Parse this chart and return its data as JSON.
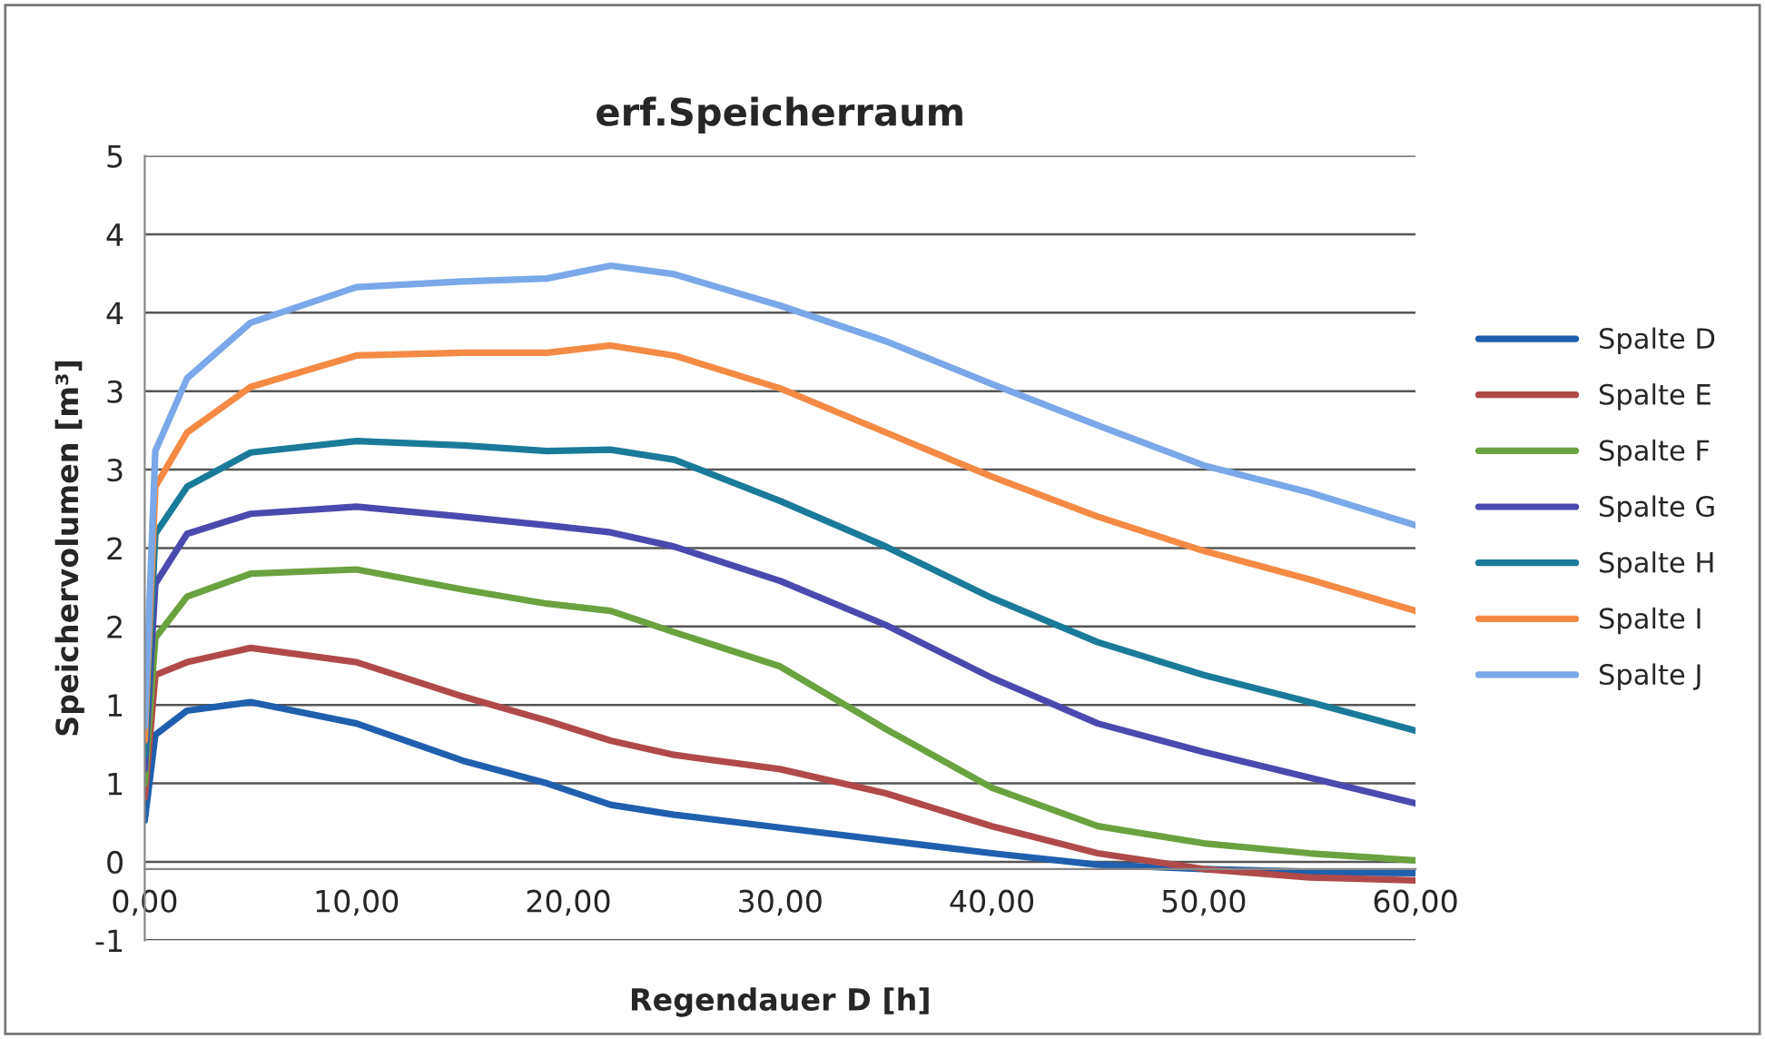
{
  "chart_data": {
    "type": "line",
    "title": "erf.Speicherraum",
    "xlabel": "Regendauer D [h]",
    "ylabel": "Speichervolumen [m³]",
    "xlim": [
      0,
      60
    ],
    "xticks": [
      {
        "value": 0,
        "label": "0,00"
      },
      {
        "value": 10,
        "label": "10,00"
      },
      {
        "value": 20,
        "label": "20,00"
      },
      {
        "value": 30,
        "label": "30,00"
      },
      {
        "value": 40,
        "label": "40,00"
      },
      {
        "value": 50,
        "label": "50,00"
      },
      {
        "value": 60,
        "label": "60,00"
      }
    ],
    "ylim": [
      -0.5,
      5
    ],
    "yticks": [
      {
        "value": -0.5,
        "label": "-1"
      },
      {
        "value": 0.05,
        "label": "0"
      },
      {
        "value": 0.6,
        "label": "1"
      },
      {
        "value": 1.15,
        "label": "1"
      },
      {
        "value": 1.7,
        "label": "2"
      },
      {
        "value": 2.25,
        "label": "2"
      },
      {
        "value": 2.8,
        "label": "3"
      },
      {
        "value": 3.35,
        "label": "3"
      },
      {
        "value": 3.9,
        "label": "4"
      },
      {
        "value": 4.45,
        "label": "4"
      },
      {
        "value": 5,
        "label": "5"
      }
    ],
    "grid": "y",
    "legend": "right",
    "marker": "none",
    "line_style": "solid",
    "x": [
      0,
      0.5,
      2,
      5,
      10,
      15,
      19,
      22,
      25,
      30,
      35,
      40,
      45,
      50,
      55,
      60
    ],
    "series": [
      {
        "name": "Spalte D",
        "color": "#1f5fae",
        "values": [
          0.34,
          0.94,
          1.11,
          1.17,
          1.02,
          0.76,
          0.6,
          0.45,
          0.38,
          0.29,
          0.2,
          0.11,
          0.03,
          0.0,
          -0.02,
          -0.03
        ]
      },
      {
        "name": "Spalte E",
        "color": "#b04a4a",
        "values": [
          0.5,
          1.36,
          1.45,
          1.55,
          1.45,
          1.21,
          1.04,
          0.9,
          0.8,
          0.7,
          0.53,
          0.3,
          0.11,
          0.0,
          -0.06,
          -0.08
        ]
      },
      {
        "name": "Spalte F",
        "color": "#6aa23f",
        "values": [
          0.6,
          1.62,
          1.91,
          2.07,
          2.1,
          1.96,
          1.86,
          1.81,
          1.66,
          1.42,
          0.98,
          0.57,
          0.3,
          0.18,
          0.11,
          0.06
        ]
      },
      {
        "name": "Spalte G",
        "color": "#4a4aae",
        "values": [
          0.7,
          2.0,
          2.35,
          2.49,
          2.54,
          2.47,
          2.41,
          2.36,
          2.26,
          2.02,
          1.71,
          1.34,
          1.02,
          0.82,
          0.64,
          0.46
        ]
      },
      {
        "name": "Spalte H",
        "color": "#1a7a9a",
        "values": [
          0.8,
          2.35,
          2.68,
          2.92,
          3.0,
          2.97,
          2.93,
          2.94,
          2.87,
          2.58,
          2.26,
          1.9,
          1.59,
          1.36,
          1.17,
          0.97
        ]
      },
      {
        "name": "Spalte I",
        "color": "#f58a45",
        "values": [
          0.9,
          2.68,
          3.06,
          3.38,
          3.6,
          3.62,
          3.62,
          3.67,
          3.6,
          3.37,
          3.06,
          2.75,
          2.47,
          2.23,
          2.03,
          1.81
        ]
      },
      {
        "name": "Spalte J",
        "color": "#7aa8e8",
        "values": [
          1.0,
          2.93,
          3.44,
          3.83,
          4.08,
          4.12,
          4.14,
          4.23,
          4.17,
          3.95,
          3.7,
          3.4,
          3.11,
          2.83,
          2.64,
          2.41
        ]
      }
    ]
  }
}
